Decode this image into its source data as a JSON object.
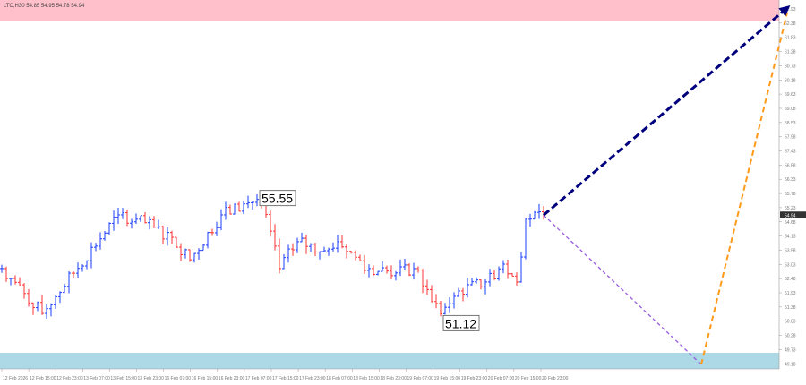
{
  "header": {
    "title": "LTC,H30  54.85 54.95 54.78 54.94"
  },
  "colors": {
    "resistance_zone": "#ffc0cb",
    "support_zone": "#add8e6",
    "bull_bar": "#1a3cff",
    "bear_bar": "#ff3030",
    "forecast_main": "#00007f",
    "forecast_down": "#9a5de0",
    "forecast_up": "#ff9a1a"
  },
  "chart_data": {
    "type": "bar",
    "title": "LTC,H30",
    "yticks": [
      "62.93",
      "62.38",
      "61.83",
      "61.28",
      "60.73",
      "60.18",
      "59.63",
      "59.08",
      "58.53",
      "57.98",
      "57.43",
      "56.88",
      "56.33",
      "55.78",
      "55.23",
      "54.68",
      "54.13",
      "53.58",
      "53.03",
      "52.48",
      "51.93",
      "51.38",
      "50.83",
      "50.28",
      "49.73",
      "49.18"
    ],
    "ylim": [
      49.18,
      62.93
    ],
    "current_price": "54.94",
    "xticks": [
      "12 Feb 2026",
      "12 Feb 15:00",
      "12 Feb 23:00",
      "13 Feb 07:00",
      "13 Feb 15:00",
      "13 Feb 23:00",
      "16 Feb 07:00",
      "16 Feb 15:00",
      "16 Feb 23:00",
      "17 Feb 07:00",
      "17 Feb 15:00",
      "17 Feb 23:00",
      "18 Feb 07:00",
      "18 Feb 15:00",
      "18 Feb 23:00",
      "19 Feb 07:00",
      "19 Feb 15:00",
      "19 Feb 23:00",
      "20 Feb 07:00",
      "20 Feb 15:00",
      "20 Feb 23:00"
    ],
    "price_path": [
      [
        0,
        52.87
      ],
      [
        9,
        51.13
      ],
      [
        26,
        54.95
      ],
      [
        30,
        54.78
      ],
      [
        38,
        54.08
      ],
      [
        42,
        53.21
      ],
      [
        49,
        54.95
      ],
      [
        57,
        55.55
      ],
      [
        60,
        54.32
      ],
      [
        62,
        52.87
      ],
      [
        66,
        53.91
      ],
      [
        72,
        53.56
      ],
      [
        75,
        53.91
      ],
      [
        82,
        52.87
      ],
      [
        88,
        52.7
      ],
      [
        92,
        52.87
      ],
      [
        98,
        51.12
      ],
      [
        102,
        52.0
      ],
      [
        108,
        52.35
      ],
      [
        112,
        53.04
      ],
      [
        115,
        52.35
      ],
      [
        117,
        54.78
      ],
      [
        121,
        54.94
      ]
    ],
    "annotations": [
      {
        "text": "55.55",
        "bar": 57
      },
      {
        "text": "51.12",
        "bar": 98
      }
    ],
    "zones": {
      "resistance": [
        62.2,
        62.93
      ],
      "support": [
        49.18,
        49.73
      ]
    },
    "forecast": {
      "main_target": 62.93,
      "alt_low": 49.7,
      "alt_target": 62.6
    }
  }
}
